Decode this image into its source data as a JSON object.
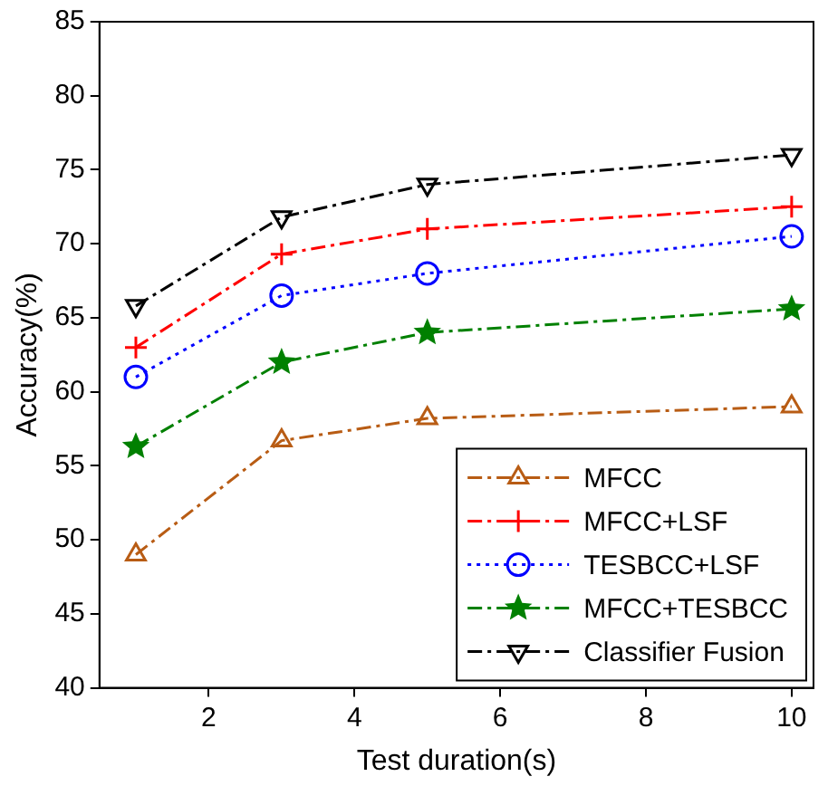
{
  "chart_data": {
    "type": "line",
    "xlabel": "Test duration(s)",
    "ylabel": "Accuracy(%)",
    "x": [
      1,
      3,
      5,
      10
    ],
    "xlim": [
      0.5,
      10.3
    ],
    "xticks": [
      2,
      4,
      6,
      8,
      10
    ],
    "ylim": [
      40,
      85
    ],
    "yticks": [
      40,
      45,
      50,
      55,
      60,
      65,
      70,
      75,
      80,
      85
    ],
    "grid": false,
    "legend": "bottom right",
    "series": [
      {
        "name": "MFCC",
        "color": "#b85c14",
        "values": [
          49,
          56.7,
          58.2,
          59
        ],
        "marker": "triangle",
        "line_style": "dashdot"
      },
      {
        "name": "MFCC+LSF",
        "color": "#ff0000",
        "values": [
          63,
          69.3,
          71,
          72.5
        ],
        "marker": "cross",
        "line_style": "dashdot"
      },
      {
        "name": "TESBCC+LSF",
        "color": "#0000ff",
        "values": [
          61,
          66.5,
          68,
          70.5
        ],
        "marker": "circle",
        "line_style": "dotted"
      },
      {
        "name": "MFCC+TESBCC",
        "color": "#008000",
        "values": [
          56.3,
          62,
          64,
          65.6
        ],
        "marker": "star",
        "line_style": "dashdot"
      },
      {
        "name": "Classifier Fusion",
        "color": "#000000",
        "values": [
          65.8,
          71.8,
          74,
          76
        ],
        "marker": "triangle-down",
        "line_style": "dashdot"
      }
    ]
  }
}
